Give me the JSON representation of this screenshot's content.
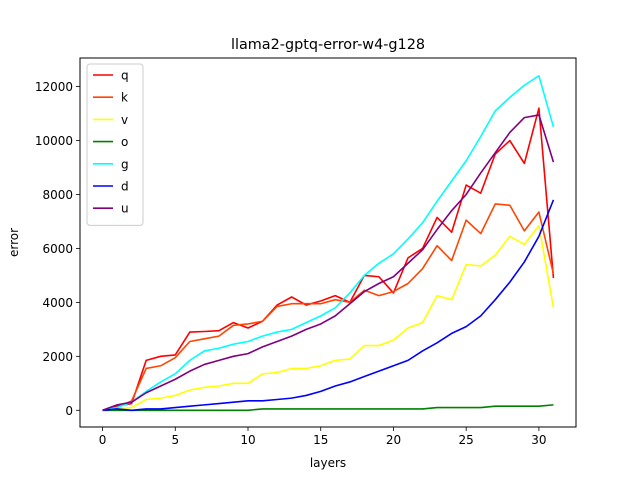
{
  "chart_data": {
    "type": "line",
    "title": "llama2-gptq-error-w4-g128",
    "xlabel": "layers",
    "ylabel": "error",
    "xlim": [
      -1.55,
      32.55
    ],
    "ylim": [
      -620,
      13060
    ],
    "xticks": [
      0,
      5,
      10,
      15,
      20,
      25,
      30
    ],
    "yticks": [
      0,
      2000,
      4000,
      6000,
      8000,
      10000,
      12000
    ],
    "grid": false,
    "legend_position": "top-left",
    "x": [
      0,
      1,
      2,
      3,
      4,
      5,
      6,
      7,
      8,
      9,
      10,
      11,
      12,
      13,
      14,
      15,
      16,
      17,
      18,
      19,
      20,
      21,
      22,
      23,
      24,
      25,
      26,
      27,
      28,
      29,
      30,
      31
    ],
    "series": [
      {
        "name": "q",
        "color": "#ff0000",
        "values": [
          0,
          150,
          250,
          1850,
          2000,
          2050,
          2900,
          2920,
          2950,
          3250,
          3050,
          3300,
          3900,
          4200,
          3900,
          4050,
          4250,
          4000,
          5000,
          4950,
          4350,
          5650,
          6000,
          7150,
          6600,
          8350,
          8050,
          9500,
          10000,
          9150,
          11200,
          4900
        ]
      },
      {
        "name": "k",
        "color": "#ff4500",
        "values": [
          0,
          100,
          350,
          1550,
          1650,
          1950,
          2550,
          2650,
          2750,
          3150,
          3200,
          3300,
          3850,
          3950,
          3950,
          3950,
          4100,
          4000,
          4450,
          4250,
          4400,
          4700,
          5250,
          6100,
          5550,
          7050,
          6550,
          7650,
          7600,
          6650,
          7350,
          5050
        ]
      },
      {
        "name": "v",
        "color": "#ffff00",
        "values": [
          0,
          50,
          100,
          400,
          450,
          550,
          750,
          850,
          900,
          1000,
          1000,
          1350,
          1400,
          1550,
          1550,
          1650,
          1850,
          1900,
          2400,
          2400,
          2600,
          3050,
          3250,
          4250,
          4100,
          5400,
          5350,
          5750,
          6450,
          6150,
          6850,
          3800
        ]
      },
      {
        "name": "o",
        "color": "#008000",
        "values": [
          0,
          0,
          0,
          0,
          0,
          0,
          0,
          0,
          0,
          0,
          0,
          50,
          50,
          50,
          50,
          50,
          50,
          50,
          50,
          50,
          50,
          50,
          50,
          100,
          100,
          100,
          100,
          150,
          150,
          150,
          150,
          200
        ]
      },
      {
        "name": "g",
        "color": "#00ffff",
        "values": [
          0,
          100,
          300,
          700,
          1050,
          1350,
          1850,
          2200,
          2300,
          2450,
          2550,
          2750,
          2900,
          3000,
          3250,
          3500,
          3800,
          4350,
          5000,
          5450,
          5800,
          6350,
          6950,
          7750,
          8500,
          9250,
          10150,
          11100,
          11600,
          12050,
          12400,
          10500
        ]
      },
      {
        "name": "d",
        "color": "#0000ff",
        "values": [
          0,
          50,
          0,
          50,
          50,
          100,
          150,
          200,
          250,
          300,
          350,
          350,
          400,
          450,
          550,
          700,
          900,
          1050,
          1250,
          1450,
          1650,
          1850,
          2200,
          2500,
          2850,
          3100,
          3500,
          4100,
          4750,
          5500,
          6450,
          7800
        ]
      },
      {
        "name": "u",
        "color": "#800080",
        "values": [
          0,
          200,
          300,
          650,
          900,
          1150,
          1450,
          1700,
          1850,
          2000,
          2100,
          2350,
          2550,
          2750,
          3000,
          3200,
          3500,
          3950,
          4400,
          4700,
          4950,
          5450,
          5950,
          6700,
          7400,
          8000,
          8800,
          9550,
          10300,
          10850,
          10950,
          9200
        ]
      }
    ]
  }
}
